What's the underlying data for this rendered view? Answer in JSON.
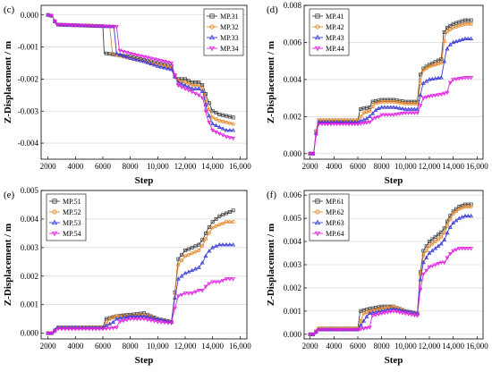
{
  "chart_data": [
    {
      "type": "line",
      "panel_label": "(c)",
      "xlabel": "Step",
      "ylabel": "Z-Displacement / m",
      "xlim": [
        1500,
        16500
      ],
      "ylim": [
        -0.0045,
        0.0003
      ],
      "xticks": [
        2000,
        4000,
        6000,
        8000,
        10000,
        12000,
        14000,
        16000
      ],
      "xtick_labels": [
        "2000",
        "4000",
        "6000",
        "8000",
        "10,000",
        "12,000",
        "14,000",
        "16,000"
      ],
      "yticks": [
        0,
        -0.001,
        -0.002,
        -0.003,
        -0.004
      ],
      "ytick_labels": [
        "0.000",
        "-0.001",
        "-0.002",
        "-0.003",
        "-0.004"
      ],
      "grid": "horizontal",
      "legend_position": "top-right",
      "series": [
        {
          "name": "MP.31",
          "color": "#444444",
          "marker": "square",
          "x": [
            2000,
            2200,
            2400,
            2600,
            4000,
            6000,
            6100,
            6300,
            7000,
            8000,
            9000,
            10000,
            11000,
            11200,
            11500,
            12000,
            12500,
            13000,
            13300,
            13600,
            14000,
            14500,
            15000,
            15500
          ],
          "y": [
            0,
            0,
            -0.0001,
            -0.0003,
            -0.00032,
            -0.00035,
            -0.0012,
            -0.0012,
            -0.00125,
            -0.0013,
            -0.0014,
            -0.0015,
            -0.0016,
            -0.0019,
            -0.002,
            -0.002,
            -0.0021,
            -0.0021,
            -0.0022,
            -0.0026,
            -0.003,
            -0.0031,
            -0.00315,
            -0.0032
          ]
        },
        {
          "name": "MP.32",
          "color": "#e8882a",
          "marker": "circle",
          "x": [
            2000,
            2200,
            2400,
            2600,
            4000,
            6000,
            6500,
            6700,
            7000,
            8000,
            9000,
            10000,
            11000,
            11200,
            11500,
            12000,
            12500,
            13000,
            13300,
            13600,
            14000,
            14500,
            15000,
            15500
          ],
          "y": [
            0,
            0,
            -0.0001,
            -0.0003,
            -0.00032,
            -0.00035,
            -0.00036,
            -0.0012,
            -0.00125,
            -0.00135,
            -0.00145,
            -0.00155,
            -0.00165,
            -0.0019,
            -0.00205,
            -0.0021,
            -0.0022,
            -0.0022,
            -0.0023,
            -0.0028,
            -0.0032,
            -0.0033,
            -0.00335,
            -0.0034
          ]
        },
        {
          "name": "MP.33",
          "color": "#3b3bd6",
          "marker": "triangle",
          "x": [
            2000,
            2200,
            2400,
            2600,
            4000,
            6000,
            6800,
            7000,
            8000,
            9000,
            10000,
            11000,
            11200,
            11500,
            12000,
            12500,
            13000,
            13300,
            13600,
            14000,
            14500,
            15000,
            15500
          ],
          "y": [
            0,
            0,
            -0.0001,
            -0.0003,
            -0.00032,
            -0.00035,
            -0.00036,
            -0.0012,
            -0.00135,
            -0.00145,
            -0.0016,
            -0.0017,
            -0.0019,
            -0.0021,
            -0.0022,
            -0.0023,
            -0.0023,
            -0.0024,
            -0.003,
            -0.0034,
            -0.0035,
            -0.0036,
            -0.0036
          ]
        },
        {
          "name": "MP.34",
          "color": "#e020e0",
          "marker": "triangle-down",
          "x": [
            2000,
            2200,
            2400,
            2600,
            4000,
            6000,
            7000,
            7200,
            8000,
            9000,
            10000,
            11000,
            11200,
            11500,
            12000,
            12500,
            13000,
            13300,
            13600,
            14000,
            14500,
            15000,
            15500
          ],
          "y": [
            0,
            0,
            -0.0001,
            -0.0003,
            -0.00032,
            -0.00035,
            -0.00036,
            -0.0011,
            -0.0012,
            -0.0013,
            -0.0014,
            -0.0015,
            -0.0018,
            -0.0022,
            -0.0023,
            -0.0024,
            -0.0025,
            -0.0026,
            -0.0032,
            -0.0036,
            -0.0037,
            -0.0038,
            -0.00385
          ]
        }
      ]
    },
    {
      "type": "line",
      "panel_label": "(d)",
      "xlabel": "Step",
      "ylabel": "Z-Displacement / m",
      "xlim": [
        1500,
        16500
      ],
      "ylim": [
        -0.0003,
        0.008
      ],
      "xticks": [
        2000,
        4000,
        6000,
        8000,
        10000,
        12000,
        14000,
        16000
      ],
      "xtick_labels": [
        "2000",
        "4000",
        "6000",
        "8000",
        "10,000",
        "12,000",
        "14,000",
        "16,000"
      ],
      "yticks": [
        0,
        0.002,
        0.004,
        0.006,
        0.008
      ],
      "ytick_labels": [
        "0.000",
        "0.002",
        "0.004",
        "0.006",
        "0.008"
      ],
      "grid": "horizontal",
      "legend_position": "top-left",
      "series": [
        {
          "name": "MP.41",
          "color": "#444444",
          "marker": "square",
          "x": [
            2000,
            2300,
            2500,
            2700,
            4000,
            6000,
            6200,
            7000,
            7200,
            8000,
            9000,
            10000,
            11000,
            11200,
            11500,
            12000,
            13000,
            13200,
            13500,
            14000,
            15000,
            15500
          ],
          "y": [
            0,
            0,
            0.0012,
            0.0018,
            0.0018,
            0.0018,
            0.0024,
            0.0025,
            0.0028,
            0.0029,
            0.0029,
            0.0028,
            0.0028,
            0.0042,
            0.0046,
            0.0048,
            0.0051,
            0.0065,
            0.0068,
            0.007,
            0.0072,
            0.0072
          ]
        },
        {
          "name": "MP.42",
          "color": "#e8882a",
          "marker": "circle",
          "x": [
            2000,
            2300,
            2500,
            2700,
            4000,
            6000,
            6500,
            7000,
            7400,
            8000,
            9000,
            10000,
            11000,
            11300,
            11500,
            12000,
            13000,
            13300,
            13500,
            14000,
            15000,
            15500
          ],
          "y": [
            0,
            0,
            0.0012,
            0.0018,
            0.0018,
            0.0018,
            0.0022,
            0.0023,
            0.0027,
            0.0028,
            0.0028,
            0.0027,
            0.0027,
            0.004,
            0.0045,
            0.0047,
            0.0049,
            0.0063,
            0.0066,
            0.0068,
            0.007,
            0.007
          ]
        },
        {
          "name": "MP.43",
          "color": "#3b3bd6",
          "marker": "triangle",
          "x": [
            2000,
            2300,
            2500,
            2700,
            4000,
            6000,
            6800,
            7000,
            7600,
            8000,
            9000,
            10000,
            11000,
            11400,
            11500,
            12000,
            13000,
            13400,
            13600,
            14000,
            15000,
            15500
          ],
          "y": [
            0,
            0,
            0.0011,
            0.0017,
            0.0017,
            0.0017,
            0.0019,
            0.002,
            0.0024,
            0.0025,
            0.0025,
            0.0024,
            0.0024,
            0.0036,
            0.0038,
            0.004,
            0.0041,
            0.0055,
            0.0058,
            0.006,
            0.0062,
            0.0062
          ]
        },
        {
          "name": "MP.44",
          "color": "#e020e0",
          "marker": "triangle-down",
          "x": [
            2000,
            2300,
            2500,
            2700,
            4000,
            6000,
            7000,
            7300,
            7800,
            8000,
            9000,
            10000,
            11000,
            11500,
            12000,
            13000,
            13500,
            13700,
            14000,
            15000,
            15500
          ],
          "y": [
            0,
            0,
            0.001,
            0.0016,
            0.0016,
            0.0016,
            0.0017,
            0.0019,
            0.002,
            0.0021,
            0.0021,
            0.0022,
            0.0022,
            0.003,
            0.0031,
            0.0032,
            0.0033,
            0.0038,
            0.004,
            0.0041,
            0.0041
          ]
        }
      ]
    },
    {
      "type": "line",
      "panel_label": "(e)",
      "xlabel": "Step",
      "ylabel": "Z-Displacement / m",
      "xlim": [
        1500,
        16500
      ],
      "ylim": [
        -0.0002,
        0.005
      ],
      "xticks": [
        2000,
        4000,
        6000,
        8000,
        10000,
        12000,
        14000,
        16000
      ],
      "xtick_labels": [
        "2000",
        "4000",
        "6000",
        "8000",
        "10,000",
        "12,000",
        "14,000",
        "16,000"
      ],
      "yticks": [
        0,
        0.001,
        0.002,
        0.003,
        0.004,
        0.005
      ],
      "ytick_labels": [
        "0.000",
        "0.001",
        "0.002",
        "0.003",
        "0.004",
        "0.005"
      ],
      "grid": "horizontal",
      "legend_position": "top-left",
      "series": [
        {
          "name": "MP.51",
          "color": "#444444",
          "marker": "square",
          "x": [
            2000,
            2400,
            2600,
            4000,
            6000,
            6200,
            7000,
            8000,
            9000,
            10000,
            11000,
            11200,
            11500,
            12000,
            12500,
            13000,
            13300,
            13600,
            14000,
            14500,
            15000,
            15500
          ],
          "y": [
            0,
            0,
            0.0002,
            0.0002,
            0.0002,
            0.0005,
            0.0006,
            0.00065,
            0.0007,
            0.0005,
            0.0004,
            0.0012,
            0.0026,
            0.0029,
            0.003,
            0.0031,
            0.0033,
            0.0036,
            0.0039,
            0.0041,
            0.0042,
            0.0043
          ]
        },
        {
          "name": "MP.52",
          "color": "#e8882a",
          "marker": "circle",
          "x": [
            2000,
            2400,
            2600,
            4000,
            6000,
            6500,
            7000,
            8000,
            9000,
            10000,
            11000,
            11200,
            11500,
            12000,
            12500,
            13000,
            13300,
            13600,
            14000,
            14500,
            15000,
            15500
          ],
          "y": [
            0,
            0,
            0.0002,
            0.0002,
            0.0002,
            0.0005,
            0.0006,
            0.0006,
            0.00065,
            0.0005,
            0.0004,
            0.0012,
            0.0024,
            0.0027,
            0.0028,
            0.0029,
            0.0031,
            0.0034,
            0.0037,
            0.0038,
            0.0039,
            0.0039
          ]
        },
        {
          "name": "MP.53",
          "color": "#3b3bd6",
          "marker": "triangle",
          "x": [
            2000,
            2400,
            2600,
            4000,
            6000,
            6800,
            7000,
            8000,
            9000,
            10000,
            11000,
            11200,
            11500,
            12000,
            12500,
            13000,
            13300,
            13600,
            14000,
            14500,
            15000,
            15500
          ],
          "y": [
            0,
            0,
            0.0002,
            0.0002,
            0.0002,
            0.0004,
            0.0005,
            0.0006,
            0.0006,
            0.0005,
            0.0004,
            0.0011,
            0.0019,
            0.0021,
            0.0022,
            0.0023,
            0.0025,
            0.0028,
            0.003,
            0.0031,
            0.0031,
            0.0031
          ]
        },
        {
          "name": "MP.54",
          "color": "#e020e0",
          "marker": "triangle-down",
          "x": [
            2000,
            2400,
            2600,
            4000,
            6000,
            7000,
            7200,
            8000,
            9000,
            10000,
            11000,
            11200,
            11500,
            12000,
            12500,
            13000,
            13300,
            13600,
            14000,
            14500,
            15000,
            15500
          ],
          "y": [
            0,
            0,
            0.00015,
            0.00015,
            0.00015,
            0.0002,
            0.0004,
            0.0005,
            0.0005,
            0.0004,
            0.00035,
            0.0008,
            0.0013,
            0.0014,
            0.0014,
            0.0015,
            0.0015,
            0.0017,
            0.0018,
            0.0018,
            0.0019,
            0.0019
          ]
        }
      ]
    },
    {
      "type": "line",
      "panel_label": "(f)",
      "xlabel": "Step",
      "ylabel": "Z-Displacement / m",
      "xlim": [
        1500,
        16500
      ],
      "ylim": [
        -0.0002,
        0.0062
      ],
      "xticks": [
        2000,
        4000,
        6000,
        8000,
        10000,
        12000,
        14000,
        16000
      ],
      "xtick_labels": [
        "2000",
        "4000",
        "6000",
        "8000",
        "10,000",
        "12,000",
        "14,000",
        "16,000"
      ],
      "yticks": [
        0,
        0.001,
        0.002,
        0.003,
        0.004,
        0.005,
        0.006
      ],
      "ytick_labels": [
        "0.000",
        "0.001",
        "0.002",
        "0.003",
        "0.004",
        "0.005",
        "0.006"
      ],
      "grid": "horizontal",
      "legend_position": "top-left",
      "series": [
        {
          "name": "MP.61",
          "color": "#444444",
          "marker": "square",
          "x": [
            2000,
            2400,
            2600,
            4000,
            6000,
            6200,
            7000,
            8000,
            9000,
            10000,
            11000,
            11200,
            11500,
            12000,
            12500,
            13000,
            13300,
            13600,
            14000,
            14500,
            15000,
            15500
          ],
          "y": [
            0,
            0,
            0.00025,
            0.00025,
            0.00025,
            0.001,
            0.0011,
            0.0012,
            0.0012,
            0.001,
            0.0009,
            0.0025,
            0.0036,
            0.004,
            0.0042,
            0.0044,
            0.0046,
            0.005,
            0.0053,
            0.0055,
            0.0056,
            0.0056
          ]
        },
        {
          "name": "MP.62",
          "color": "#e8882a",
          "marker": "circle",
          "x": [
            2000,
            2400,
            2600,
            4000,
            6000,
            6500,
            7000,
            8000,
            9000,
            10000,
            11000,
            11200,
            11500,
            12000,
            12500,
            13000,
            13300,
            13600,
            14000,
            14500,
            15000,
            15500
          ],
          "y": [
            0,
            0,
            0.00025,
            0.00025,
            0.00025,
            0.0009,
            0.001,
            0.0011,
            0.0012,
            0.001,
            0.0009,
            0.0024,
            0.0034,
            0.0038,
            0.004,
            0.0042,
            0.0044,
            0.0048,
            0.0052,
            0.0054,
            0.0055,
            0.0055
          ]
        },
        {
          "name": "MP.63",
          "color": "#3b3bd6",
          "marker": "triangle",
          "x": [
            2000,
            2400,
            2600,
            4000,
            6000,
            6800,
            7000,
            8000,
            9000,
            10000,
            11000,
            11200,
            11500,
            12000,
            12500,
            13000,
            13300,
            13600,
            14000,
            14500,
            15000,
            15500
          ],
          "y": [
            0,
            0,
            0.0002,
            0.0002,
            0.0002,
            0.0008,
            0.0009,
            0.001,
            0.0011,
            0.001,
            0.0009,
            0.0022,
            0.0031,
            0.0035,
            0.0037,
            0.0039,
            0.0041,
            0.0045,
            0.0048,
            0.005,
            0.0051,
            0.0051
          ]
        },
        {
          "name": "MP.64",
          "color": "#e020e0",
          "marker": "triangle-down",
          "x": [
            2000,
            2400,
            2600,
            4000,
            6000,
            7000,
            7200,
            8000,
            9000,
            10000,
            11000,
            11200,
            11500,
            12000,
            12500,
            13000,
            13300,
            13600,
            14000,
            14500,
            15000,
            15500
          ],
          "y": [
            0,
            0,
            0.0002,
            0.0002,
            0.0002,
            0.0003,
            0.0008,
            0.0009,
            0.001,
            0.0009,
            0.0008,
            0.0018,
            0.0026,
            0.0029,
            0.003,
            0.0031,
            0.0031,
            0.0034,
            0.0036,
            0.0037,
            0.0037,
            0.0037
          ]
        }
      ]
    }
  ]
}
